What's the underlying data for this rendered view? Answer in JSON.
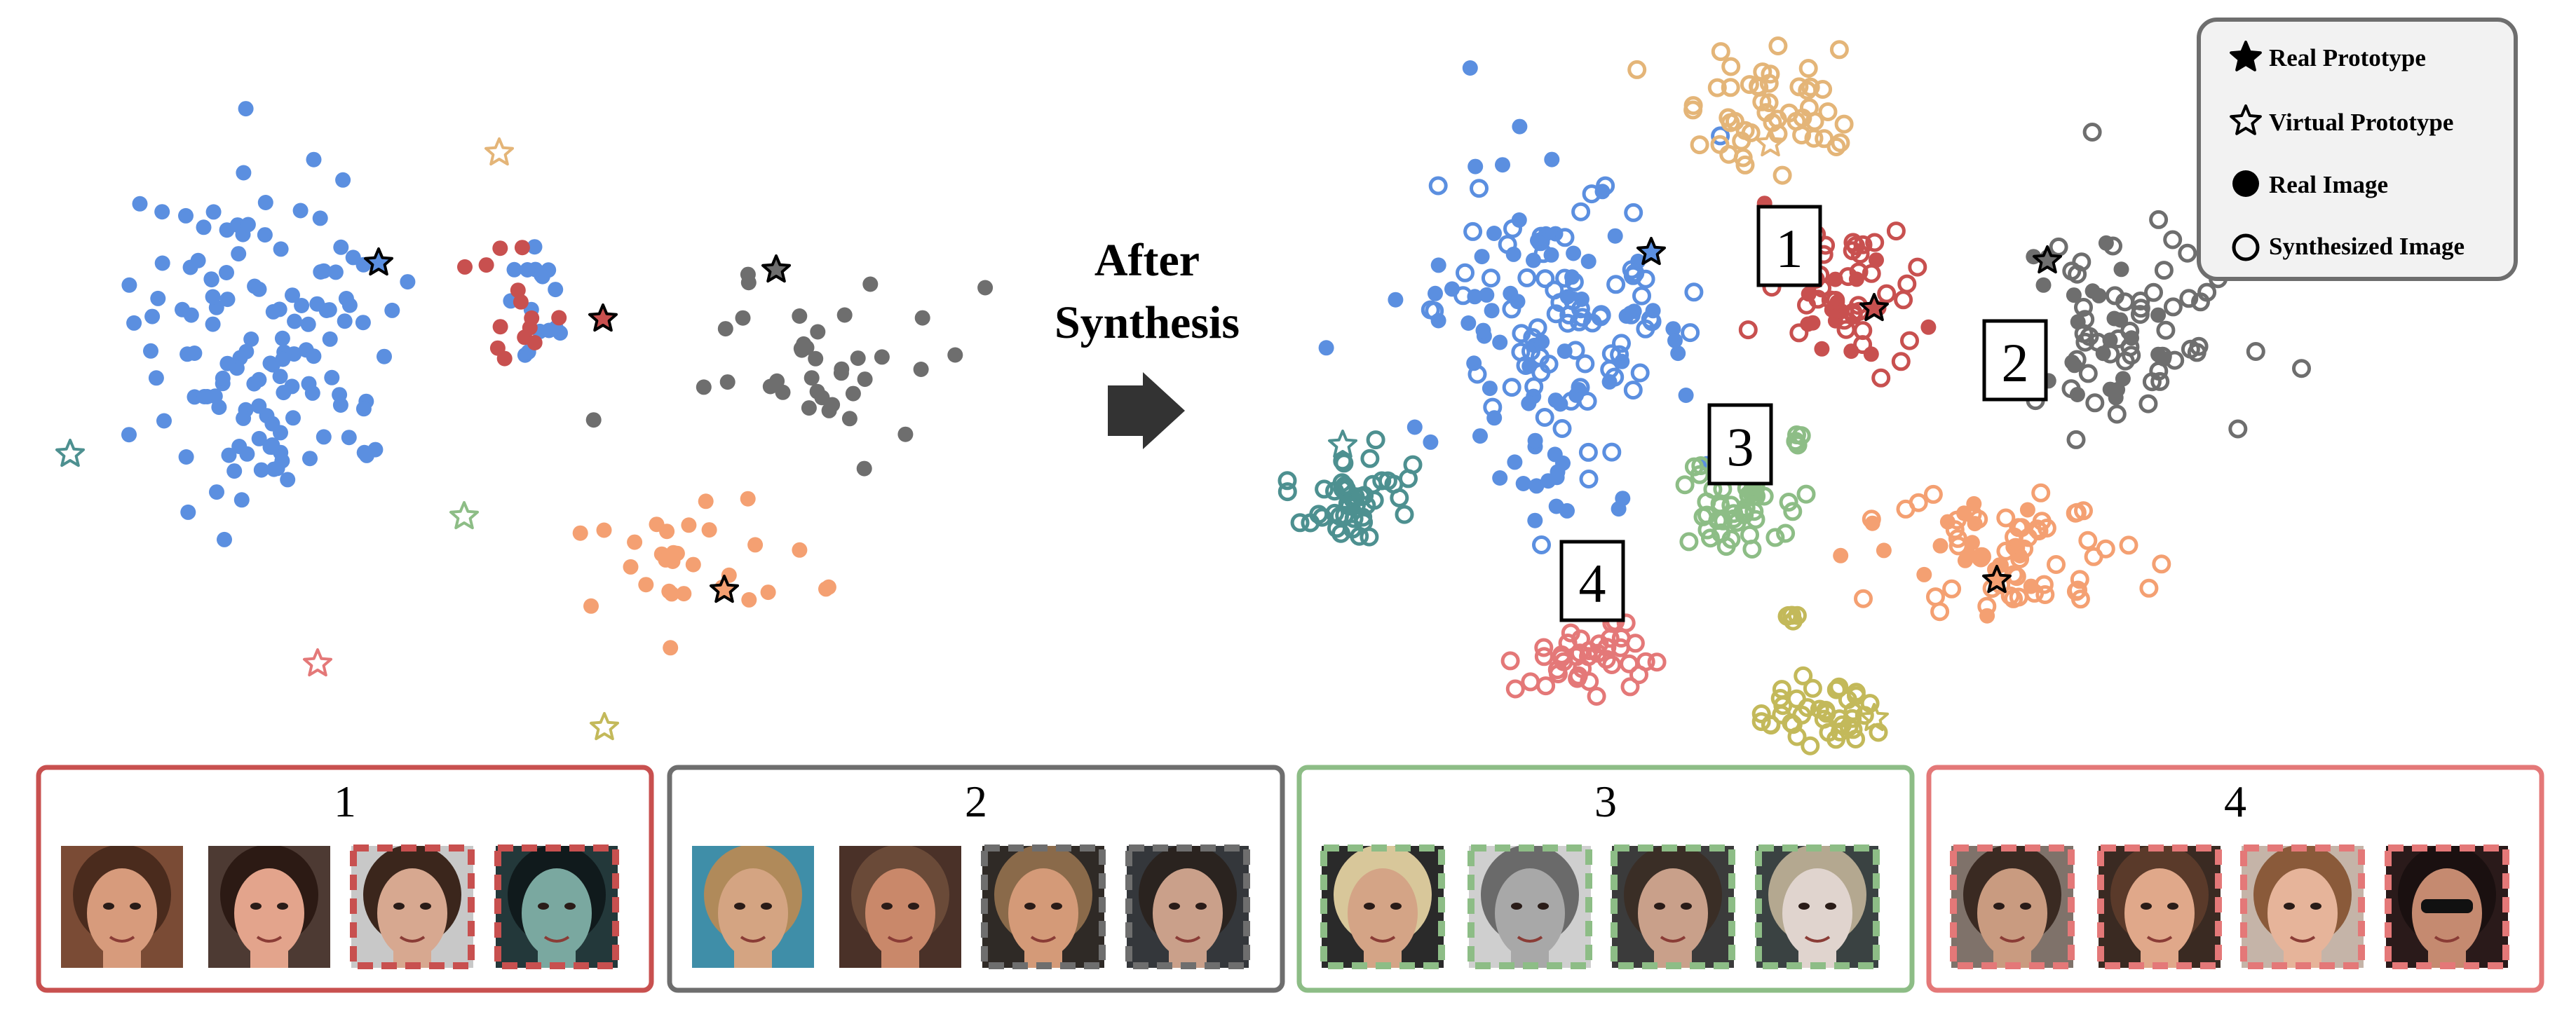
{
  "colors": {
    "blue": "#5b8fe0",
    "red": "#c8504f",
    "gray": "#6e6e6e",
    "orange": "#f4a072",
    "teal": "#4d9090",
    "green": "#8dbd86",
    "gold": "#e4b578",
    "olive": "#c3b95a",
    "pink": "#e47878"
  },
  "arrow_label": {
    "line1": "After",
    "line2": "Synthesis"
  },
  "legend": {
    "real_prototype": "Real Prototype",
    "virtual_prototype": "Virtual Prototype",
    "real_image": "Real Image",
    "synthesized_image": "Synthesized Image"
  },
  "cluster_labels": [
    "1",
    "2",
    "3",
    "4"
  ],
  "panels": [
    {
      "label": "1",
      "color": "red",
      "faces": [
        {
          "type": "real",
          "tone": "warm-brunette"
        },
        {
          "type": "real",
          "tone": "smiling-brunette"
        },
        {
          "type": "synthesized",
          "tone": "brunette-bangs"
        },
        {
          "type": "synthesized",
          "tone": "teal-dark-hair"
        }
      ]
    },
    {
      "label": "2",
      "color": "gray",
      "faces": [
        {
          "type": "real",
          "tone": "blond-man"
        },
        {
          "type": "real",
          "tone": "blurry-man"
        },
        {
          "type": "synthesized",
          "tone": "smiling-man"
        },
        {
          "type": "synthesized",
          "tone": "serious-man"
        }
      ]
    },
    {
      "label": "3",
      "color": "green",
      "faces": [
        {
          "type": "synthesized",
          "tone": "blond-young-man"
        },
        {
          "type": "synthesized",
          "tone": "gray-portrait-man"
        },
        {
          "type": "synthesized",
          "tone": "stubble-man"
        },
        {
          "type": "synthesized",
          "tone": "pale-man"
        }
      ]
    },
    {
      "label": "4",
      "color": "pink",
      "faces": [
        {
          "type": "synthesized",
          "tone": "woman-side"
        },
        {
          "type": "synthesized",
          "tone": "woman-smiling"
        },
        {
          "type": "synthesized",
          "tone": "woman-laughing"
        },
        {
          "type": "synthesized",
          "tone": "woman-sunglasses"
        }
      ]
    }
  ]
}
